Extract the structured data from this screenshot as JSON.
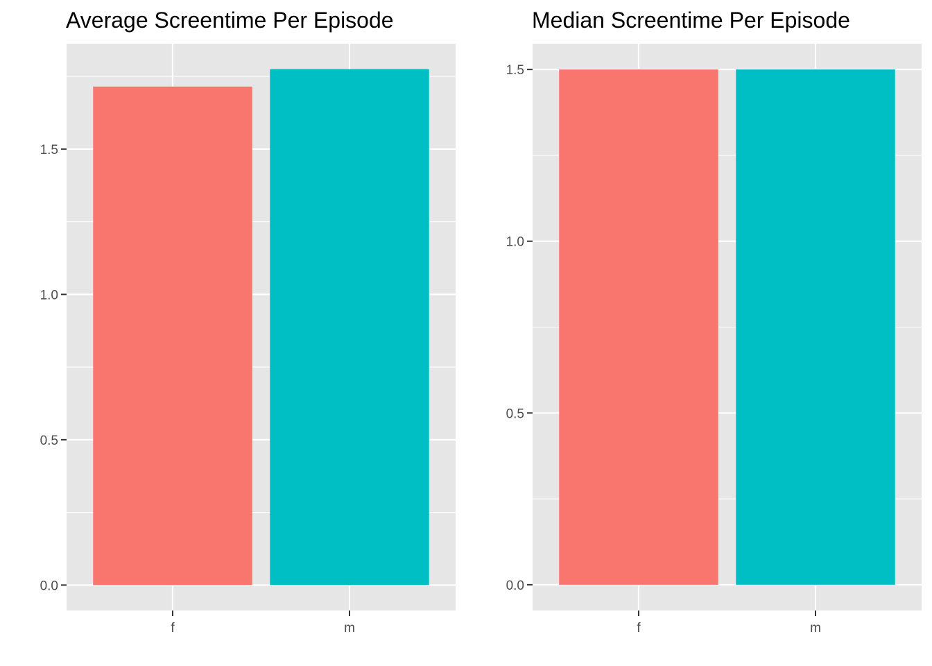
{
  "chart_data": [
    {
      "type": "bar",
      "title": "Average Screentime Per Episode",
      "xlabel": "",
      "ylabel": "",
      "categories": [
        "f",
        "m"
      ],
      "values": [
        1.715,
        1.775
      ],
      "colors": [
        "#F8766D",
        "#00BFC4"
      ],
      "ylim": [
        -0.0875,
        1.8625
      ],
      "yticks": [
        0.0,
        0.5,
        1.0,
        1.5
      ],
      "ytick_labels": [
        "0.0",
        "0.5",
        "1.0",
        "1.5"
      ],
      "grid": true,
      "legend": "none"
    },
    {
      "type": "bar",
      "title": "Median Screentime Per Episode",
      "xlabel": "",
      "ylabel": "",
      "categories": [
        "f",
        "m"
      ],
      "values": [
        1.5,
        1.5
      ],
      "colors": [
        "#F8766D",
        "#00BFC4"
      ],
      "ylim": [
        -0.075,
        1.575
      ],
      "yticks": [
        0.0,
        0.5,
        1.0,
        1.5
      ],
      "ytick_labels": [
        "0.0",
        "0.5",
        "1.0",
        "1.5"
      ],
      "grid": true,
      "legend": "none"
    }
  ]
}
